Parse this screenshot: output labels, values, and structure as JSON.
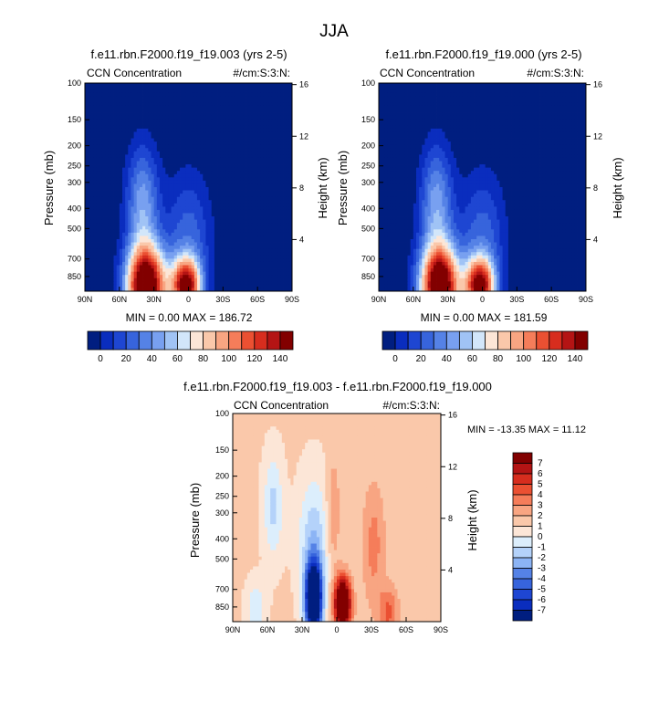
{
  "figure": {
    "title": "JJA"
  },
  "colors": {
    "seq": [
      "#001e80",
      "#0a2dbe",
      "#1e46d2",
      "#3764dc",
      "#5582e6",
      "#78a0f0",
      "#a0c3f5",
      "#d2e6fa",
      "#fce6d7",
      "#fac8aa",
      "#f8a582",
      "#f57d5a",
      "#eb5032",
      "#d72d1e",
      "#b41414",
      "#820000"
    ],
    "div": [
      "#001e80",
      "#0a2dbe",
      "#1e46d2",
      "#3764dc",
      "#5582e6",
      "#8cb4f5",
      "#b4d2fa",
      "#dceefc",
      "#fce6d7",
      "#fac8aa",
      "#f8a582",
      "#f57d5a",
      "#eb5032",
      "#d72d1e",
      "#b41414",
      "#820000"
    ]
  },
  "chart_data": [
    {
      "type": "heatmap",
      "title": "f.e11.rbn.F2000.f19_f19.003 (yrs 2-5)",
      "left_label": "CCN Concentration",
      "right_label": "#/cm:S:3:N:",
      "ylabel": "Pressure (mb)",
      "ylabel_right": "Height (km)",
      "x_ticks": [
        "90N",
        "60N",
        "30N",
        "0",
        "30S",
        "60S",
        "90S"
      ],
      "y_ticks": [
        "100",
        "150",
        "200",
        "250",
        "300",
        "400",
        "500",
        "700",
        "850"
      ],
      "y_ticks_right": [
        "16",
        "12",
        "8",
        "4"
      ],
      "stats": "MIN =   0.00   MAX = 186.72",
      "colorbar_ticks": [
        "0",
        "20",
        "40",
        "60",
        "80",
        "100",
        "120",
        "140"
      ],
      "xlim": [
        90,
        -90
      ],
      "ylim_mb": [
        100,
        1000
      ],
      "scale": "log-pressure",
      "contour_levels": [
        0,
        10,
        20,
        30,
        40,
        50,
        60,
        70,
        80,
        90,
        100,
        110,
        120,
        130,
        140,
        150
      ],
      "peaks": [
        {
          "lat": 37,
          "p": 950,
          "value": 186.72
        },
        {
          "lat": 2,
          "p": 950,
          "value": 150
        }
      ]
    },
    {
      "type": "heatmap",
      "title": "f.e11.rbn.F2000.f19_f19.000 (yrs 2-5)",
      "left_label": "CCN Concentration",
      "right_label": "#/cm:S:3:N:",
      "ylabel": "Pressure (mb)",
      "ylabel_right": "Height (km)",
      "x_ticks": [
        "90N",
        "60N",
        "30N",
        "0",
        "30S",
        "60S",
        "90S"
      ],
      "y_ticks": [
        "100",
        "150",
        "200",
        "250",
        "300",
        "400",
        "500",
        "700",
        "850"
      ],
      "y_ticks_right": [
        "16",
        "12",
        "8",
        "4"
      ],
      "stats": "MIN =   0.00   MAX = 181.59",
      "colorbar_ticks": [
        "0",
        "20",
        "40",
        "60",
        "80",
        "100",
        "120",
        "140"
      ],
      "xlim": [
        90,
        -90
      ],
      "ylim_mb": [
        100,
        1000
      ],
      "scale": "log-pressure",
      "contour_levels": [
        0,
        10,
        20,
        30,
        40,
        50,
        60,
        70,
        80,
        90,
        100,
        110,
        120,
        130,
        140,
        150
      ],
      "peaks": [
        {
          "lat": 37,
          "p": 950,
          "value": 181.59
        },
        {
          "lat": 2,
          "p": 950,
          "value": 150
        }
      ]
    },
    {
      "type": "heatmap",
      "title": "f.e11.rbn.F2000.f19_f19.003 - f.e11.rbn.F2000.f19_f19.000",
      "left_label": "CCN Concentration",
      "right_label": "#/cm:S:3:N:",
      "ylabel": "Pressure (mb)",
      "ylabel_right": "Height (km)",
      "x_ticks": [
        "90N",
        "60N",
        "30N",
        "0",
        "30S",
        "60S",
        "90S"
      ],
      "y_ticks": [
        "100",
        "150",
        "200",
        "250",
        "300",
        "400",
        "500",
        "700",
        "850"
      ],
      "y_ticks_right": [
        "16",
        "12",
        "8",
        "4"
      ],
      "stats": "MIN = -13.35  MAX =  11.12",
      "colorbar_ticks": [
        "7",
        "6",
        "5",
        "4",
        "3",
        "2",
        "1",
        "0",
        "-1",
        "-2",
        "-3",
        "-4",
        "-5",
        "-6",
        "-7"
      ],
      "xlim": [
        90,
        -90
      ],
      "ylim_mb": [
        100,
        1000
      ],
      "scale": "log-pressure",
      "contour_levels": [
        -7,
        -6,
        -5,
        -4,
        -3,
        -2,
        -1,
        0,
        1,
        2,
        3,
        4,
        5,
        6,
        7
      ],
      "extremes": [
        {
          "lat": 20,
          "p": 800,
          "value": -13.35
        },
        {
          "lat": -5,
          "p": 800,
          "value": 11.12
        }
      ]
    }
  ]
}
